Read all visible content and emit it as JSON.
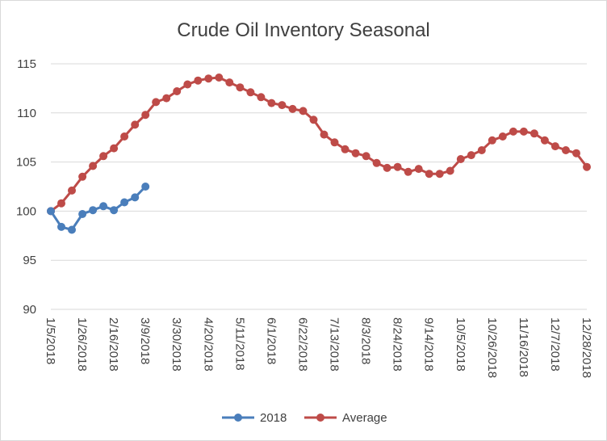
{
  "chart_data": {
    "type": "line",
    "title": "Crude Oil Inventory Seasonal",
    "xlabel": "",
    "ylabel": "",
    "ylim": [
      90,
      115
    ],
    "y_ticks": [
      "90",
      "95",
      "100",
      "105",
      "110",
      "115"
    ],
    "x_tick_labels": [
      "1/5/2018",
      "1/26/2018",
      "2/16/2018",
      "3/9/2018",
      "3/30/2018",
      "4/20/2018",
      "5/11/2018",
      "6/1/2018",
      "6/22/2018",
      "7/13/2018",
      "8/3/2018",
      "8/24/2018",
      "9/14/2018",
      "10/5/2018",
      "10/26/2018",
      "11/16/2018",
      "12/7/2018",
      "12/28/2018"
    ],
    "grid": "horizontal",
    "legend_position": "bottom",
    "series": [
      {
        "name": "2018",
        "color": "#4a7ebb",
        "values": [
          100,
          98.4,
          98.1,
          99.7,
          100.1,
          100.5,
          100.1,
          100.9,
          101.4,
          102.5
        ]
      },
      {
        "name": "Average",
        "color": "#be4b48",
        "values": [
          100,
          100.8,
          102.1,
          103.5,
          104.6,
          105.6,
          106.4,
          107.6,
          108.8,
          109.8,
          111.1,
          111.5,
          112.2,
          112.9,
          113.3,
          113.5,
          113.6,
          113.1,
          112.6,
          112.1,
          111.6,
          111.0,
          110.8,
          110.4,
          110.2,
          109.3,
          107.8,
          107.0,
          106.3,
          105.9,
          105.6,
          104.9,
          104.4,
          104.5,
          104.0,
          104.3,
          103.8,
          103.8,
          104.1,
          105.3,
          105.7,
          106.2,
          107.2,
          107.6,
          108.1,
          108.1,
          107.9,
          107.2,
          106.6,
          106.2,
          105.9,
          104.5
        ]
      }
    ]
  }
}
